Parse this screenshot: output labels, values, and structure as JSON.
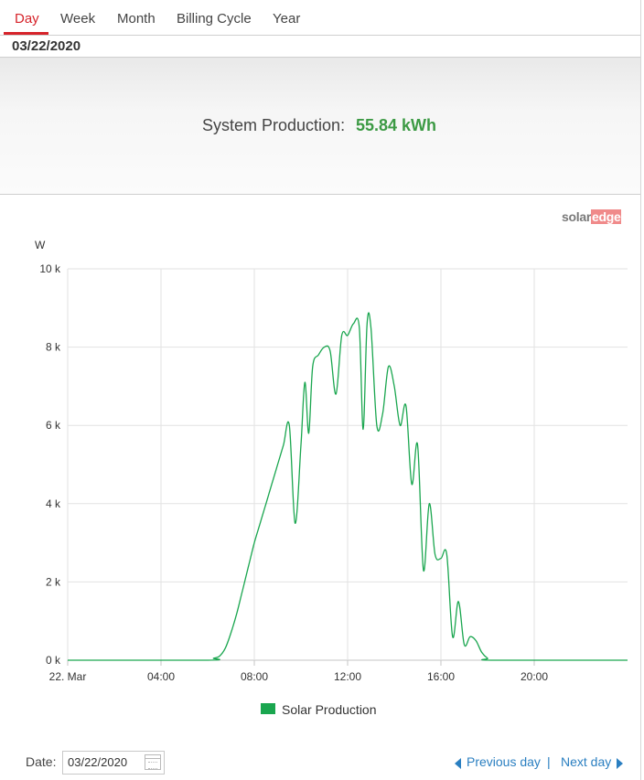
{
  "tabs": [
    {
      "label": "Day",
      "active": true
    },
    {
      "label": "Week",
      "active": false
    },
    {
      "label": "Month",
      "active": false
    },
    {
      "label": "Billing Cycle",
      "active": false
    },
    {
      "label": "Year",
      "active": false
    }
  ],
  "selected_date": "03/22/2020",
  "summary": {
    "label": "System Production:",
    "value": "55.84 kWh"
  },
  "brand": {
    "part1": "solar",
    "part2": "edge"
  },
  "colors": {
    "accent": "#d6232a",
    "series": "#1aa64f",
    "value": "#3c9a44",
    "link": "#2a7fc1"
  },
  "chart_data": {
    "type": "line",
    "ylabel": "W",
    "ylim": [
      0,
      10000
    ],
    "xlim": [
      "22. Mar 00:00",
      "23. Mar 00:00"
    ],
    "x_tick_labels": [
      "22. Mar",
      "04:00",
      "08:00",
      "12:00",
      "16:00",
      "20:00"
    ],
    "y_tick_labels": [
      "0 k",
      "2 k",
      "4 k",
      "6 k",
      "8 k",
      "10 k"
    ],
    "grid": true,
    "legend": "bottom-center",
    "series": [
      {
        "name": "Solar Production",
        "color": "#1aa64f",
        "points": [
          [
            "00:00",
            0
          ],
          [
            "06:00",
            0
          ],
          [
            "06:15",
            50
          ],
          [
            "06:30",
            100
          ],
          [
            "06:45",
            300
          ],
          [
            "07:00",
            700
          ],
          [
            "07:15",
            1200
          ],
          [
            "07:30",
            1800
          ],
          [
            "07:45",
            2400
          ],
          [
            "08:00",
            3000
          ],
          [
            "08:15",
            3500
          ],
          [
            "08:30",
            4000
          ],
          [
            "08:45",
            4500
          ],
          [
            "09:00",
            5000
          ],
          [
            "09:15",
            5500
          ],
          [
            "09:30",
            6000
          ],
          [
            "09:45",
            3500
          ],
          [
            "10:00",
            5500
          ],
          [
            "10:10",
            7100
          ],
          [
            "10:20",
            5800
          ],
          [
            "10:30",
            7500
          ],
          [
            "10:45",
            7800
          ],
          [
            "11:00",
            8000
          ],
          [
            "11:15",
            7900
          ],
          [
            "11:30",
            6800
          ],
          [
            "11:45",
            8300
          ],
          [
            "12:00",
            8300
          ],
          [
            "12:15",
            8600
          ],
          [
            "12:30",
            8500
          ],
          [
            "12:40",
            5900
          ],
          [
            "12:50",
            8600
          ],
          [
            "13:00",
            8500
          ],
          [
            "13:15",
            6000
          ],
          [
            "13:30",
            6300
          ],
          [
            "13:45",
            7500
          ],
          [
            "14:00",
            7000
          ],
          [
            "14:15",
            6000
          ],
          [
            "14:30",
            6500
          ],
          [
            "14:45",
            4500
          ],
          [
            "15:00",
            5500
          ],
          [
            "15:15",
            2300
          ],
          [
            "15:30",
            4000
          ],
          [
            "15:45",
            2700
          ],
          [
            "16:00",
            2600
          ],
          [
            "16:15",
            2700
          ],
          [
            "16:30",
            600
          ],
          [
            "16:45",
            1500
          ],
          [
            "17:00",
            400
          ],
          [
            "17:15",
            600
          ],
          [
            "17:30",
            500
          ],
          [
            "17:45",
            200
          ],
          [
            "18:00",
            50
          ],
          [
            "18:15",
            0
          ],
          [
            "24:00",
            0
          ]
        ]
      }
    ]
  },
  "footer": {
    "date_label": "Date:",
    "date_value": "03/22/2020",
    "prev_label": "Previous day",
    "separator": "|",
    "next_label": "Next day"
  }
}
